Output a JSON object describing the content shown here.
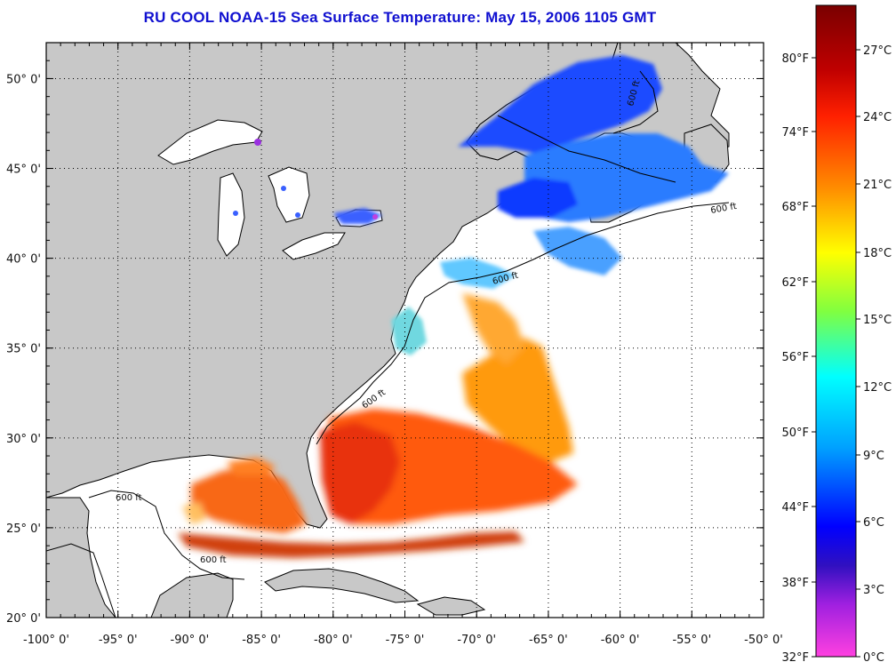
{
  "title": "RU COOL  NOAA-15  Sea Surface Temperature:  May 15, 2006 1105 GMT",
  "map": {
    "lon_range": [
      -100,
      -50
    ],
    "lat_range": [
      20,
      52
    ],
    "lon_ticks": [
      "-100° 0'",
      "-95° 0'",
      "-90° 0'",
      "-85° 0'",
      "-80° 0'",
      "-75° 0'",
      "-70° 0'",
      "-65° 0'",
      "-60° 0'",
      "-55° 0'",
      "-50° 0'"
    ],
    "lat_ticks": [
      "20° 0'",
      "25° 0'",
      "30° 0'",
      "35° 0'",
      "40° 0'",
      "45° 0'",
      "50° 0'"
    ],
    "contour_labels": [
      "600 ft",
      "600 ft",
      "600 ft",
      "600 ft",
      "600 ft",
      "600 ft"
    ],
    "land_color": "#c8c8c8",
    "nodata_color": "#ffffff"
  },
  "colorbar": {
    "fahrenheit_labels": [
      "80°F",
      "74°F",
      "68°F",
      "62°F",
      "56°F",
      "50°F",
      "44°F",
      "38°F",
      "32°F"
    ],
    "celsius_labels": [
      "27°C",
      "24°C",
      "21°C",
      "18°C",
      "15°C",
      "12°C",
      "9°C",
      "6°C",
      "3°C",
      "0°C"
    ]
  }
}
